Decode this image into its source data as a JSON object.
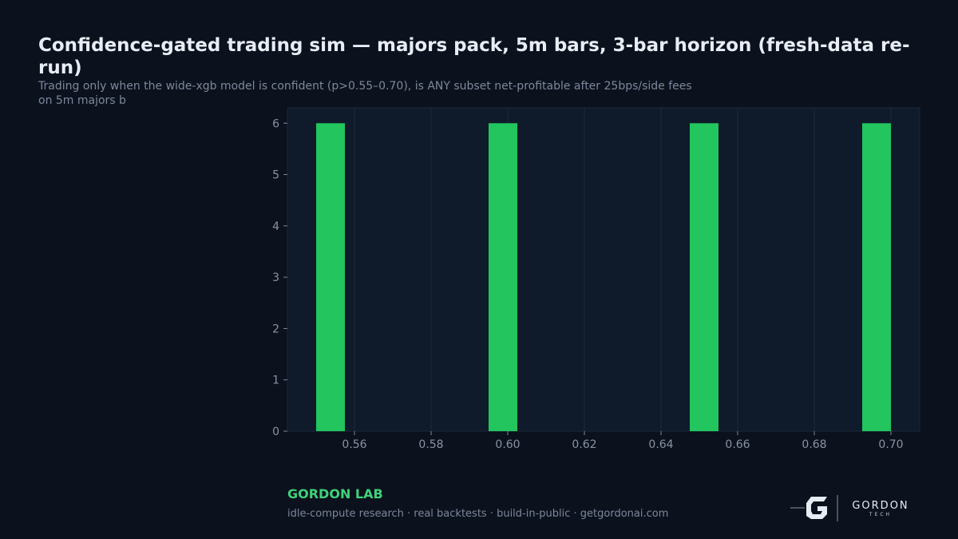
{
  "chart_data": {
    "type": "histogram",
    "title": "Confidence-gated trading sim — majors pack, 5m bars, 3-bar horizon (fresh-data re-run)",
    "subtitle": "Trading only when the wide-xgb model is confident (p>0.55–0.70), is ANY subset net-profitable after 25bps/side fees on 5m majors b",
    "bins": [
      0.55,
      0.5575,
      0.565,
      0.5725,
      0.58,
      0.5875,
      0.595,
      0.6025,
      0.61,
      0.6175,
      0.625,
      0.6325,
      0.64,
      0.6475,
      0.655,
      0.6625,
      0.67,
      0.6775,
      0.685,
      0.6925,
      0.7
    ],
    "values": [
      6,
      0,
      0,
      0,
      0,
      0,
      6,
      0,
      0,
      0,
      0,
      0,
      0,
      6,
      0,
      0,
      0,
      0,
      0,
      6
    ],
    "color": "#22c55e",
    "xlim": [
      0.5425,
      0.7075
    ],
    "xticks": [
      0.56,
      0.58,
      {
        "value": 0.6,
        "label": "0.60"
      },
      0.62,
      0.64,
      0.66,
      0.68,
      {
        "value": 0.7,
        "label": "0.70"
      }
    ],
    "ylim": [
      0,
      6.3
    ],
    "yticks": [
      0,
      1,
      2,
      3,
      4,
      5,
      6
    ],
    "grid": "x"
  },
  "footer": {
    "brand": "GORDON LAB",
    "tagline": "idle-compute research · real backtests · build-in-public · getgordonai.com"
  },
  "logo": {
    "name": "GORDON",
    "sub": "TECH"
  }
}
